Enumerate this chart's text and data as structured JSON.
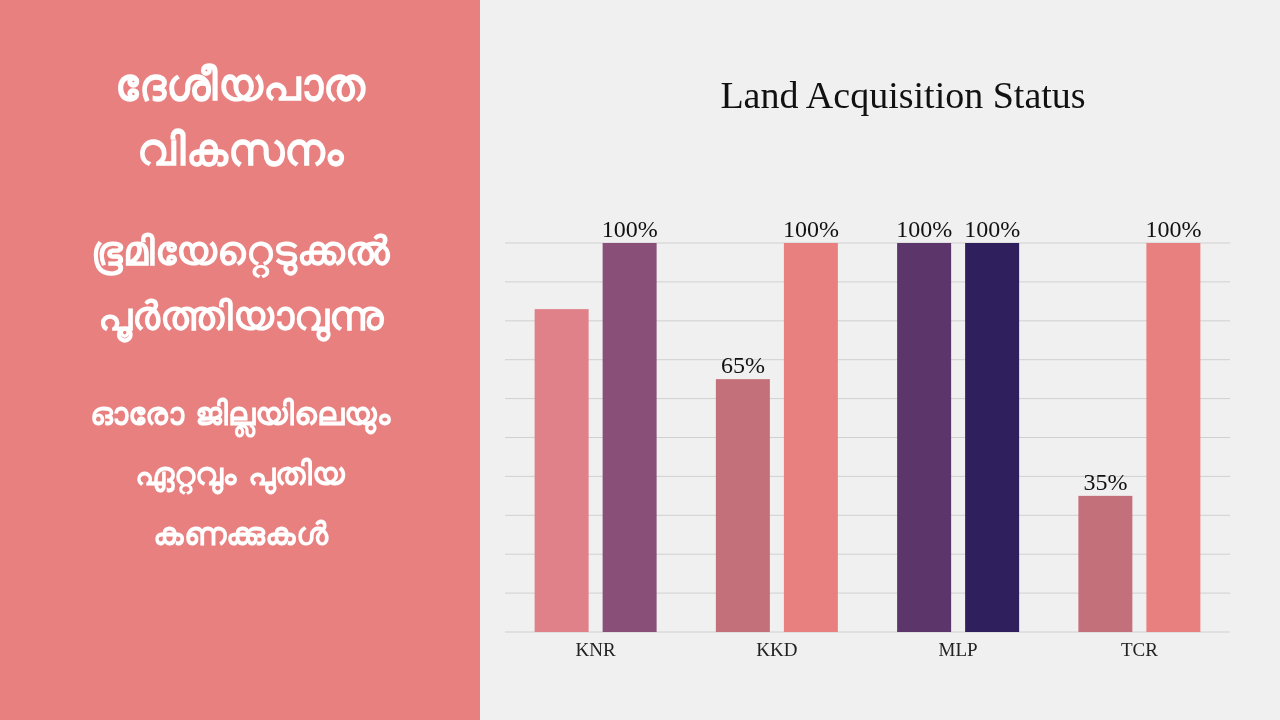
{
  "chart_data": {
    "type": "bar",
    "title": "Land Acquisition Status",
    "annotations": [
      "ദേശീയപാത",
      "വികസനം",
      "ഭൂമിയേറ്റെടുക്കൽ",
      "പൂർത്തിയാവുന്നു",
      "ഓരോ ജില്ലയിലെയും",
      "ഏറ്റവും പുതിയ",
      "കണക്കുകൾ"
    ],
    "categories": [
      "KNR",
      "KKD",
      "MLP",
      "TCR"
    ],
    "series": [
      {
        "colors": [
          "#e08088",
          "#c4707a",
          "#5c356b",
          "#c4707a"
        ],
        "values": [
          83,
          65,
          100,
          35
        ],
        "value_labels": [
          null,
          "65%",
          "100%",
          "35%"
        ]
      },
      {
        "colors": [
          "#8a4f78",
          "#e98080",
          "#2f1f5c",
          "#e98080"
        ],
        "values": [
          100,
          100,
          100,
          100
        ],
        "value_labels": [
          "100%",
          "100%",
          "100%",
          "100%"
        ]
      }
    ],
    "ylim": [
      0,
      100
    ],
    "yticks": [
      {
        "value": 0,
        "label": null
      },
      {
        "value": 10,
        "label": null
      },
      {
        "value": 20,
        "label": null
      },
      {
        "value": 30,
        "label": null
      },
      {
        "value": 40,
        "label": null
      },
      {
        "value": 50,
        "label": null
      },
      {
        "value": 60,
        "label": null
      },
      {
        "value": 70,
        "label": null
      },
      {
        "value": 80,
        "label": null
      },
      {
        "value": 90,
        "label": null
      },
      {
        "value": 100,
        "label": null
      }
    ],
    "grid": "y"
  }
}
